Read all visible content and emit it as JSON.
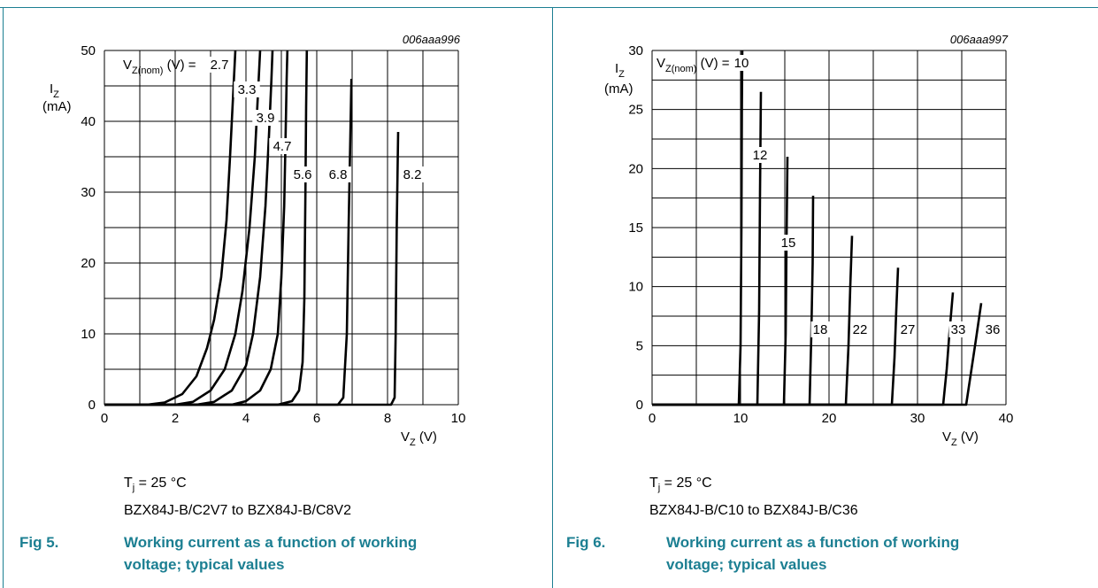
{
  "colors": {
    "accent": "#1c7f92",
    "curve": "#000000",
    "grid": "#000000"
  },
  "figures": [
    {
      "ref": "006aaa996",
      "ylabel_main": "I",
      "ylabel_sub": "Z",
      "ylabel_unit": "(mA)",
      "xlabel_main": "V",
      "xlabel_sub": "Z",
      "xlabel_unit": " (V)",
      "legend_prefix_main": "V",
      "legend_prefix_sub": "Z(nom)",
      "legend_prefix_tail": " (V) = ",
      "conditions_main": "T",
      "conditions_sub": "j",
      "conditions_tail": " = 25 °C",
      "devices": "BZX84J-B/C2V7 to BZX84J-B/C8V2",
      "fig_number": "Fig 5.",
      "caption": "Working current as a function of working voltage; typical values"
    },
    {
      "ref": "006aaa997",
      "ylabel_main": "I",
      "ylabel_sub": "Z",
      "ylabel_unit": "(mA)",
      "xlabel_main": "V",
      "xlabel_sub": "Z",
      "xlabel_unit": " (V)",
      "legend_prefix_main": "V",
      "legend_prefix_sub": "Z(nom)",
      "legend_prefix_tail": " (V) = ",
      "conditions_main": "T",
      "conditions_sub": "j",
      "conditions_tail": " = 25 °C",
      "devices": "BZX84J-B/C10 to BZX84J-B/C36",
      "fig_number": "Fig 6.",
      "caption": "Working current as a function of working voltage; typical values"
    }
  ],
  "chart_data": [
    {
      "type": "line",
      "xlim": [
        0,
        10
      ],
      "ylim": [
        0,
        50
      ],
      "xticks": [
        0,
        2,
        4,
        6,
        8,
        10
      ],
      "yticks": [
        0,
        10,
        20,
        30,
        40,
        50
      ],
      "x_minor_step": 1,
      "y_minor_step": 5,
      "grid": true,
      "series": [
        {
          "name": "2.7",
          "points": [
            [
              0,
              0
            ],
            [
              1.2,
              0
            ],
            [
              1.7,
              0.3
            ],
            [
              2.2,
              1.5
            ],
            [
              2.6,
              4
            ],
            [
              2.9,
              8
            ],
            [
              3.1,
              12
            ],
            [
              3.3,
              18
            ],
            [
              3.45,
              26
            ],
            [
              3.55,
              35
            ],
            [
              3.65,
              45
            ],
            [
              3.7,
              50
            ]
          ]
        },
        {
          "name": "3.3",
          "points": [
            [
              0,
              0
            ],
            [
              2.0,
              0
            ],
            [
              2.5,
              0.4
            ],
            [
              3.0,
              2
            ],
            [
              3.4,
              5
            ],
            [
              3.7,
              10
            ],
            [
              3.9,
              16
            ],
            [
              4.1,
              25
            ],
            [
              4.25,
              35
            ],
            [
              4.35,
              45
            ],
            [
              4.4,
              50
            ]
          ]
        },
        {
          "name": "3.9",
          "points": [
            [
              0,
              0
            ],
            [
              2.6,
              0
            ],
            [
              3.1,
              0.4
            ],
            [
              3.6,
              2
            ],
            [
              4.0,
              5.5
            ],
            [
              4.2,
              10
            ],
            [
              4.4,
              18
            ],
            [
              4.55,
              28
            ],
            [
              4.65,
              38
            ],
            [
              4.72,
              46
            ],
            [
              4.75,
              50
            ]
          ]
        },
        {
          "name": "4.7",
          "points": [
            [
              0,
              0
            ],
            [
              3.6,
              0
            ],
            [
              4.0,
              0.5
            ],
            [
              4.4,
              2
            ],
            [
              4.7,
              5
            ],
            [
              4.9,
              10
            ],
            [
              5.0,
              18
            ],
            [
              5.08,
              28
            ],
            [
              5.12,
              38
            ],
            [
              5.15,
              46
            ],
            [
              5.17,
              50
            ]
          ]
        },
        {
          "name": "5.6",
          "points": [
            [
              0,
              0
            ],
            [
              4.9,
              0
            ],
            [
              5.3,
              0.5
            ],
            [
              5.5,
              2
            ],
            [
              5.6,
              6
            ],
            [
              5.65,
              15
            ],
            [
              5.68,
              30
            ],
            [
              5.7,
              42
            ],
            [
              5.72,
              50
            ]
          ]
        },
        {
          "name": "6.8",
          "points": [
            [
              0,
              0
            ],
            [
              6.6,
              0
            ],
            [
              6.75,
              1
            ],
            [
              6.85,
              10
            ],
            [
              6.9,
              25
            ],
            [
              6.95,
              38
            ],
            [
              6.98,
              46
            ]
          ]
        },
        {
          "name": "8.2",
          "points": [
            [
              0,
              0
            ],
            [
              8.1,
              0
            ],
            [
              8.2,
              1
            ],
            [
              8.23,
              10
            ],
            [
              8.26,
              25
            ],
            [
              8.3,
              38.5
            ]
          ]
        }
      ],
      "curve_labels": [
        {
          "text": "2.7",
          "series": "2.7"
        },
        {
          "text": "3.3",
          "series": "3.3"
        },
        {
          "text": "3.9",
          "series": "3.9"
        },
        {
          "text": "4.7",
          "series": "4.7"
        },
        {
          "text": "5.6",
          "series": "5.6"
        },
        {
          "text": "6.8",
          "series": "6.8"
        },
        {
          "text": "8.2",
          "series": "8.2"
        }
      ]
    },
    {
      "type": "line",
      "xlim": [
        0,
        40
      ],
      "ylim": [
        0,
        30
      ],
      "xticks": [
        0,
        10,
        20,
        30,
        40
      ],
      "yticks": [
        0,
        5,
        10,
        15,
        20,
        25,
        30
      ],
      "x_minor_step": 5,
      "y_minor_step": 2.5,
      "grid": true,
      "series": [
        {
          "name": "10",
          "points": [
            [
              0,
              0
            ],
            [
              9.8,
              0
            ],
            [
              10.0,
              5
            ],
            [
              10.1,
              15
            ],
            [
              10.15,
              25
            ],
            [
              10.2,
              30
            ]
          ]
        },
        {
          "name": "12",
          "points": [
            [
              0,
              0
            ],
            [
              11.9,
              0
            ],
            [
              12.1,
              8
            ],
            [
              12.2,
              18
            ],
            [
              12.3,
              26.5
            ]
          ]
        },
        {
          "name": "15",
          "points": [
            [
              0,
              0
            ],
            [
              14.9,
              0
            ],
            [
              15.1,
              6
            ],
            [
              15.2,
              14
            ],
            [
              15.3,
              21
            ]
          ]
        },
        {
          "name": "18",
          "points": [
            [
              0,
              0
            ],
            [
              17.8,
              0
            ],
            [
              18.0,
              6
            ],
            [
              18.15,
              12
            ],
            [
              18.2,
              17.7
            ]
          ]
        },
        {
          "name": "22",
          "points": [
            [
              0,
              0
            ],
            [
              21.9,
              0
            ],
            [
              22.2,
              5
            ],
            [
              22.4,
              10
            ],
            [
              22.6,
              14.3
            ]
          ]
        },
        {
          "name": "27",
          "points": [
            [
              0,
              0
            ],
            [
              27.1,
              0
            ],
            [
              27.4,
              4
            ],
            [
              27.6,
              8
            ],
            [
              27.8,
              11.6
            ]
          ]
        },
        {
          "name": "33",
          "points": [
            [
              0,
              0
            ],
            [
              32.9,
              0
            ],
            [
              33.3,
              3
            ],
            [
              33.6,
              6
            ],
            [
              34.0,
              9.5
            ]
          ]
        },
        {
          "name": "36",
          "points": [
            [
              0,
              0
            ],
            [
              35.5,
              0
            ],
            [
              36.0,
              2.5
            ],
            [
              36.6,
              5.5
            ],
            [
              37.2,
              8.6
            ]
          ]
        }
      ],
      "curve_labels": [
        {
          "text": "10",
          "series": "10"
        },
        {
          "text": "12",
          "series": "12"
        },
        {
          "text": "15",
          "series": "15"
        },
        {
          "text": "18",
          "series": "18"
        },
        {
          "text": "22",
          "series": "22"
        },
        {
          "text": "27",
          "series": "27"
        },
        {
          "text": "33",
          "series": "33"
        },
        {
          "text": "36",
          "series": "36"
        }
      ]
    }
  ]
}
